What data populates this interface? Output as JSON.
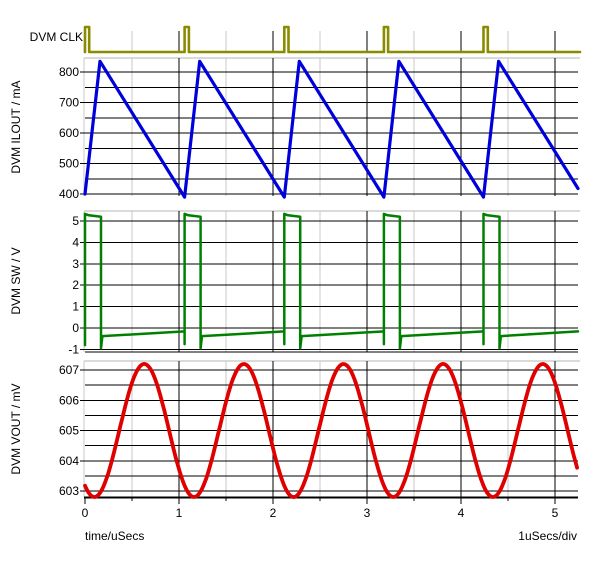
{
  "colors": {
    "clk_trace": "#8B8B00",
    "ilout_trace": "#0000DC",
    "sw_trace": "#008000",
    "vout_trace": "#DF0000",
    "grid_major": "#000000",
    "grid_minor_vertical": "#C8C8C8",
    "panel_top_border": "#B4B4B4",
    "axis_line": "#000000",
    "text": "#000000",
    "background": "#FFFFFF"
  },
  "xaxis": {
    "label": "time/uSecs",
    "scale_label": "1uSecs/div",
    "ticks": [
      0,
      1,
      2,
      3,
      4,
      5
    ],
    "minor_step": 0.5,
    "range": [
      0,
      5.245
    ]
  },
  "chart_data": [
    {
      "type": "line",
      "name": "DVM CLK",
      "description": "digital clock strip, narrow pulses",
      "pulse_times": [
        0,
        1.06,
        2.12,
        3.18,
        4.24
      ],
      "pulse_width": 0.045,
      "levels": {
        "low": 0,
        "high": 1
      },
      "color": "#8B8B00"
    },
    {
      "type": "line",
      "name": "DVM ILOUT / mA",
      "description": "inductor current sawtooth",
      "yticks": [
        400,
        500,
        600,
        700,
        800
      ],
      "y_minor_step": 50,
      "ylim": [
        390,
        843
      ],
      "x": [
        0,
        0.16,
        1.06,
        1.22,
        2.12,
        2.28,
        3.18,
        3.34,
        4.24,
        4.4,
        5.245
      ],
      "y": [
        400,
        835,
        390,
        835,
        390,
        835,
        390,
        835,
        390,
        835,
        418
      ],
      "color": "#0000DC"
    },
    {
      "type": "line",
      "name": "DVM SW / V",
      "description": "switch-node pulse train",
      "yticks": [
        -1,
        0,
        1,
        2,
        3,
        4,
        5
      ],
      "ylim": [
        -1.2,
        5.6
      ],
      "pulse_starts": [
        0,
        1.06,
        2.12,
        3.18,
        4.24
      ],
      "on_time": 0.17,
      "high_start": 5.33,
      "high_end": 5.2,
      "low_start": -0.38,
      "low_end": -0.16,
      "fall_undershoot": -0.95,
      "rise_undershoot": -0.75,
      "color": "#008000"
    },
    {
      "type": "line",
      "name": "DVM VOUT / mV",
      "description": "output ripple, sinusoid-like",
      "yticks": [
        603,
        604,
        605,
        606,
        607
      ],
      "y_minor_step": 0.5,
      "waveform": "sinusoidal_ripple",
      "mid": 605,
      "amplitude": 2.2,
      "min": 602.8,
      "max": 607.2,
      "period": 1.06,
      "trough_time": 0.1,
      "color": "#DF0000"
    }
  ]
}
